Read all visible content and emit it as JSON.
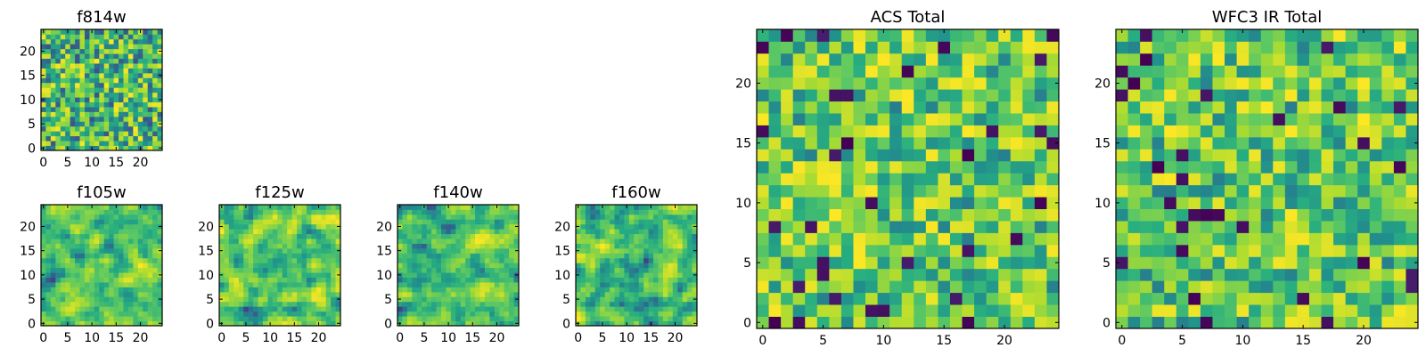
{
  "chart_data": [
    {
      "type": "heatmap",
      "title": "f814w",
      "x_ticks": [
        "0",
        "5",
        "10",
        "15",
        "20"
      ],
      "y_ticks": [
        "0",
        "5",
        "10",
        "15",
        "20"
      ],
      "xlim": [
        -0.5,
        24.5
      ],
      "ylim": [
        -0.5,
        24.5
      ],
      "grid_size": 25,
      "colormap": "viridis",
      "seed": 814,
      "texture": "fine",
      "values": "pseudo-random pixel noise (values not readable)"
    },
    {
      "type": "heatmap",
      "title": "f105w",
      "x_ticks": [
        "0",
        "5",
        "10",
        "15",
        "20"
      ],
      "y_ticks": [
        "0",
        "5",
        "10",
        "15",
        "20"
      ],
      "xlim": [
        -0.5,
        24.5
      ],
      "ylim": [
        -0.5,
        24.5
      ],
      "grid_size": 25,
      "colormap": "viridis",
      "seed": 105,
      "texture": "smooth",
      "values": "pseudo-random pixel noise (values not readable)"
    },
    {
      "type": "heatmap",
      "title": "f125w",
      "x_ticks": [
        "0",
        "5",
        "10",
        "15",
        "20"
      ],
      "y_ticks": [
        "0",
        "5",
        "10",
        "15",
        "20"
      ],
      "xlim": [
        -0.5,
        24.5
      ],
      "ylim": [
        -0.5,
        24.5
      ],
      "grid_size": 25,
      "colormap": "viridis",
      "seed": 125,
      "texture": "smooth",
      "values": "pseudo-random pixel noise (values not readable)"
    },
    {
      "type": "heatmap",
      "title": "f140w",
      "x_ticks": [
        "0",
        "5",
        "10",
        "15",
        "20"
      ],
      "y_ticks": [
        "0",
        "5",
        "10",
        "15",
        "20"
      ],
      "xlim": [
        -0.5,
        24.5
      ],
      "ylim": [
        -0.5,
        24.5
      ],
      "grid_size": 25,
      "colormap": "viridis",
      "seed": 140,
      "texture": "smooth",
      "values": "pseudo-random pixel noise (values not readable)"
    },
    {
      "type": "heatmap",
      "title": "f160w",
      "x_ticks": [
        "0",
        "5",
        "10",
        "15",
        "20"
      ],
      "y_ticks": [
        "0",
        "5",
        "10",
        "15",
        "20"
      ],
      "xlim": [
        -0.5,
        24.5
      ],
      "ylim": [
        -0.5,
        24.5
      ],
      "grid_size": 25,
      "colormap": "viridis",
      "seed": 160,
      "texture": "smooth",
      "values": "pseudo-random pixel noise (values not readable)"
    },
    {
      "type": "heatmap",
      "title": "ACS Total",
      "x_ticks": [
        "0",
        "5",
        "10",
        "15",
        "20"
      ],
      "y_ticks": [
        "0",
        "5",
        "10",
        "15",
        "20"
      ],
      "xlim": [
        -0.5,
        24.5
      ],
      "ylim": [
        -0.5,
        24.5
      ],
      "grid_size": 25,
      "colormap": "viridis",
      "seed": 901,
      "texture": "blocky",
      "values": "pseudo-random pixel noise (values not readable)"
    },
    {
      "type": "heatmap",
      "title": "WFC3 IR Total",
      "x_ticks": [
        "0",
        "5",
        "10",
        "15",
        "20"
      ],
      "y_ticks": [
        "0",
        "5",
        "10",
        "15",
        "20"
      ],
      "xlim": [
        -0.5,
        24.5
      ],
      "ylim": [
        -0.5,
        24.5
      ],
      "grid_size": 25,
      "colormap": "viridis",
      "seed": 902,
      "texture": "blocky",
      "values": "pseudo-random pixel noise (values not readable)"
    }
  ],
  "colors": {
    "axis": "#000000",
    "viridis": [
      "#440154",
      "#472d7b",
      "#3b528b",
      "#2c728e",
      "#21918c",
      "#28ae80",
      "#5ec962",
      "#addc30",
      "#fde725"
    ]
  }
}
